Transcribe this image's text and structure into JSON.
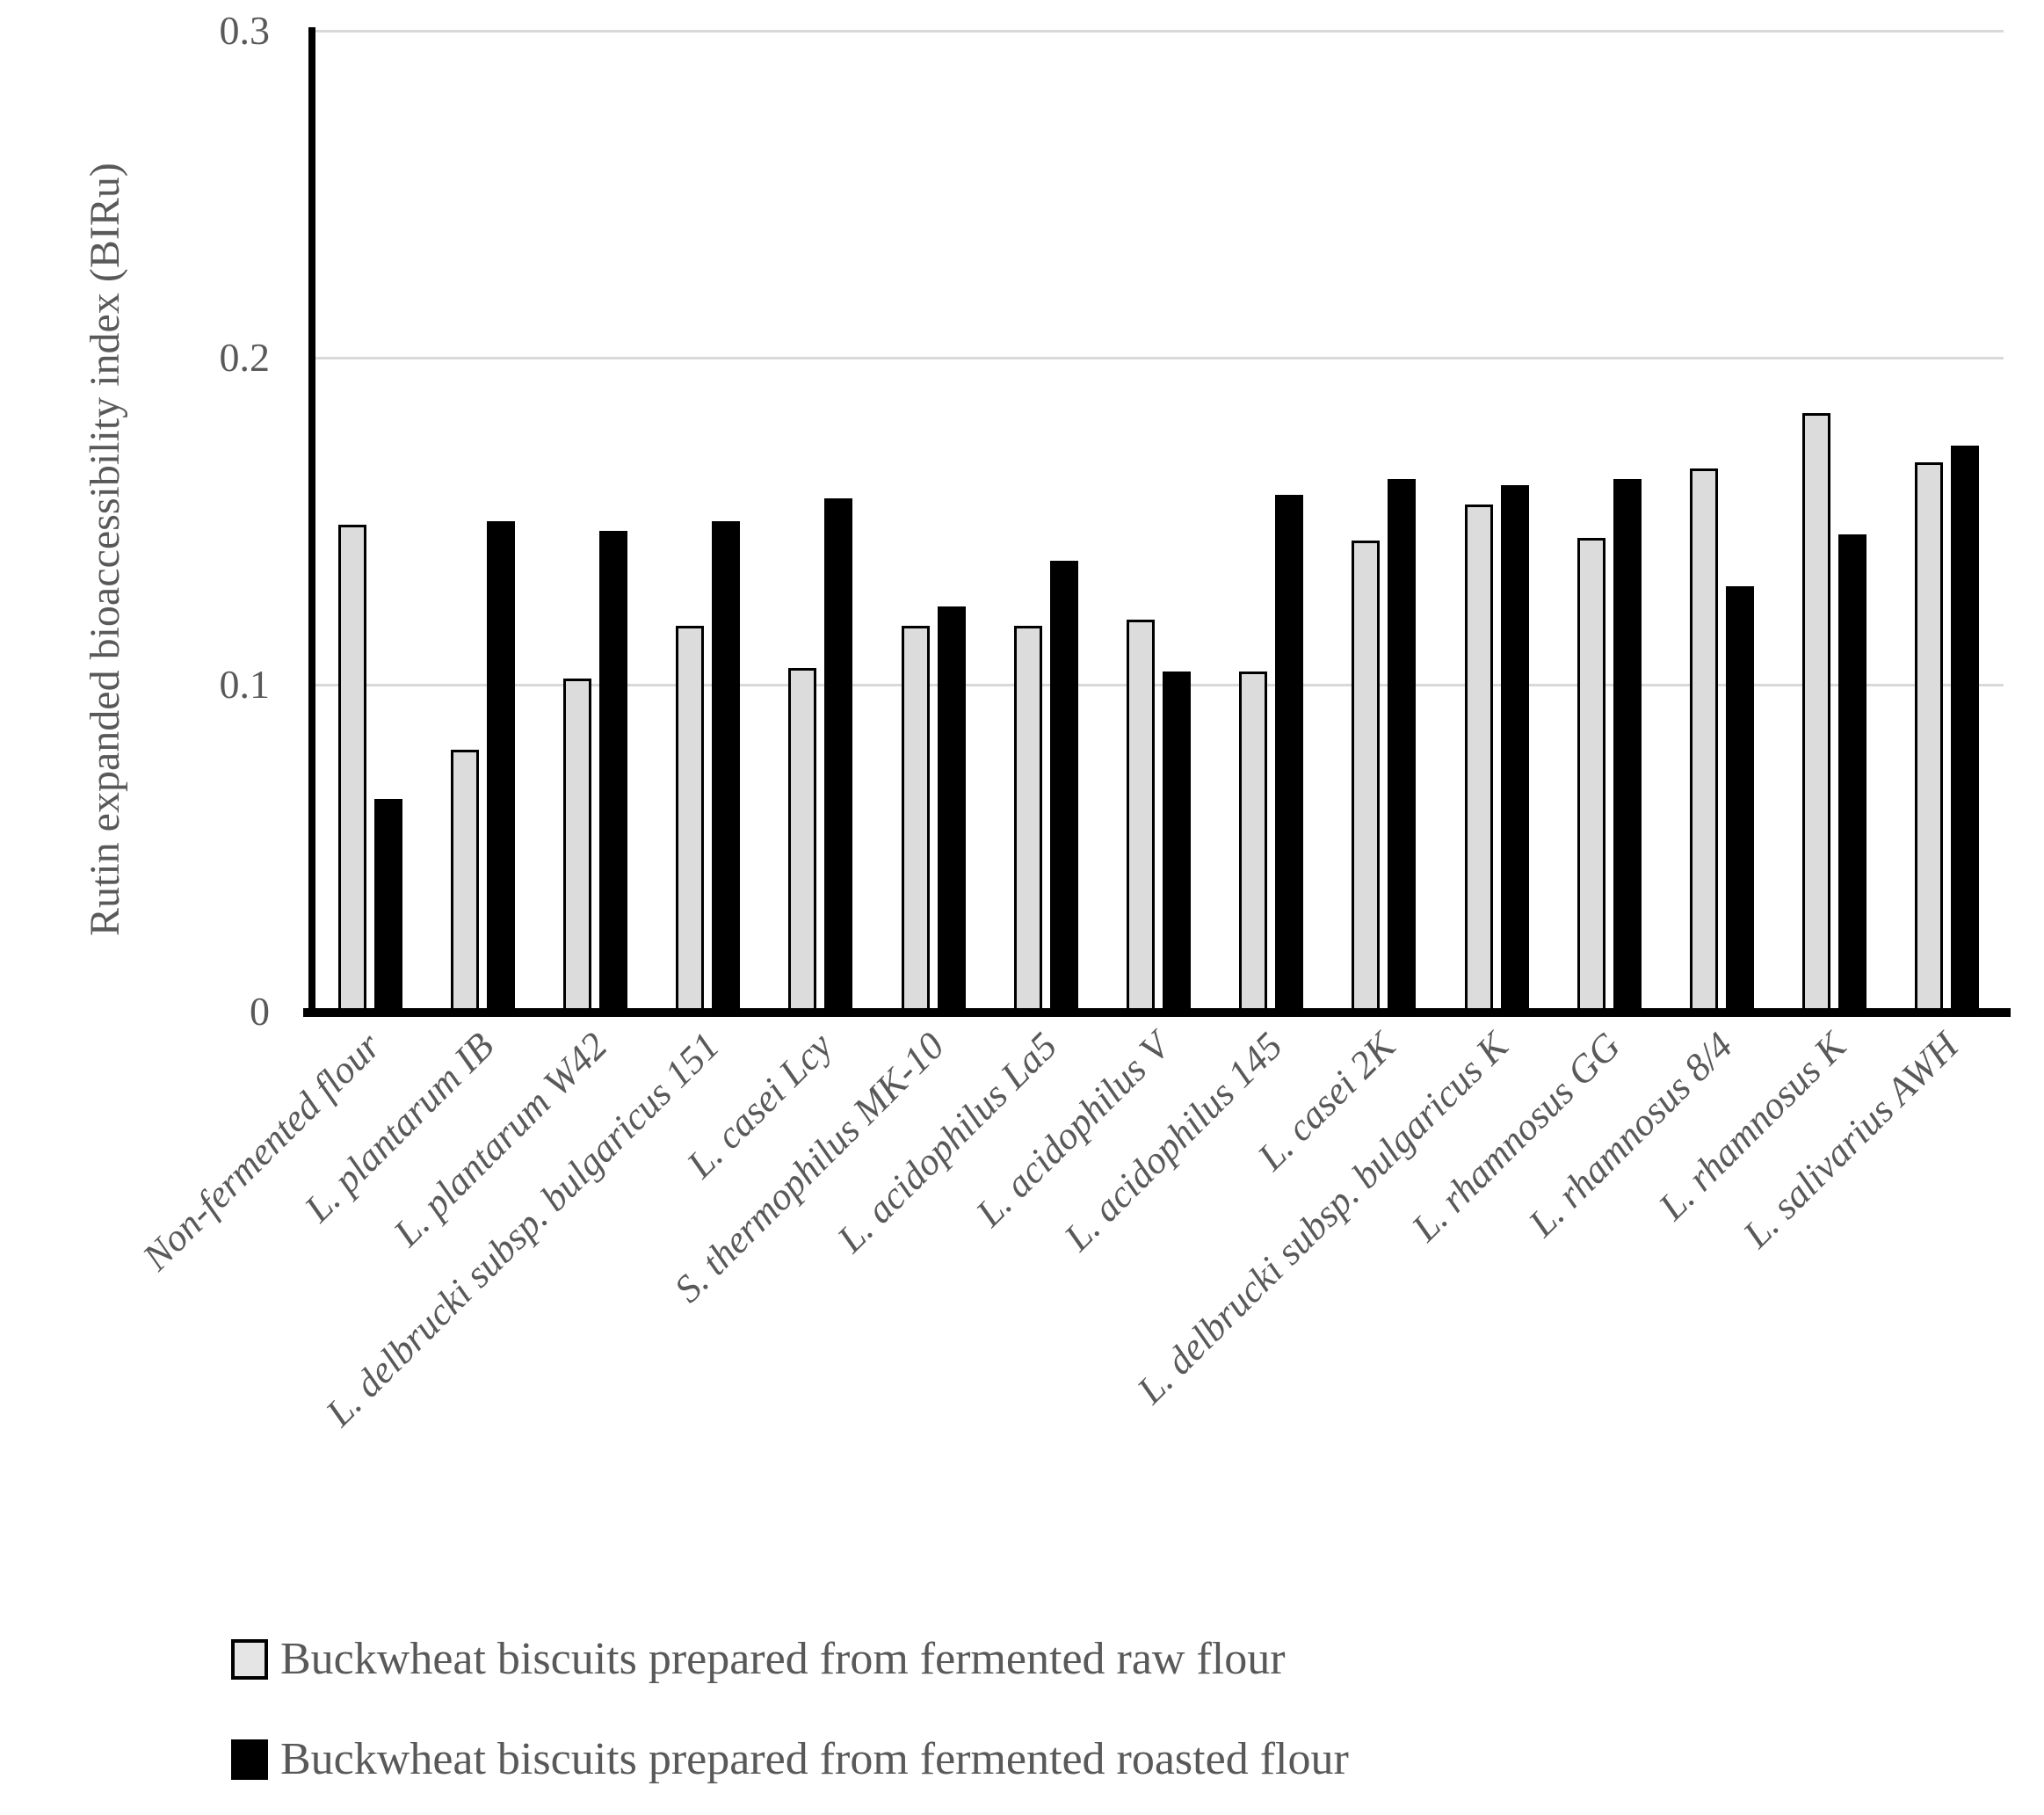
{
  "figure": {
    "background": "#ffffff"
  },
  "y_axis": {
    "title": "Rutin expanded bioaccessibility index (BIRu)",
    "tick_labels": [
      "0",
      "0.1",
      "0.2",
      "0.3"
    ],
    "tick_values": [
      0,
      0.1,
      0.2,
      0.3
    ],
    "max": 0.3
  },
  "colors": {
    "raw_bar_fill": "#dcdcdc",
    "roasted_bar_fill": "#000000",
    "bar_border": "#000000",
    "gridline": "#d9d9d9",
    "axis": "#000000",
    "text": "#595959"
  },
  "chart_data": {
    "type": "bar",
    "title": "",
    "xlabel": "",
    "ylabel": "Rutin expanded bioaccessibility index (BIRu)",
    "ylim": [
      0,
      0.3
    ],
    "yticks": [
      0,
      0.1,
      0.2,
      0.3
    ],
    "grid": true,
    "legend_position": "bottom",
    "categories": [
      "Non-fermented flour",
      "L. plantarum IB",
      "L. plantarum W42",
      "L. delbrucki subsp. bulgaricus 151",
      "L. casei Lcy",
      "S. thermophilus MK-10",
      "L. acidophilus La5",
      "L. acidophilus V",
      "L. acidophilus 145",
      "L. casei 2K",
      "L. delbrucki subsp. bulgaricus K",
      "L. rhamnosus GG",
      "L. rhamnosus 8/4",
      "L. rhamnosus K",
      "L. salivarius AWH"
    ],
    "series": [
      {
        "name": "Buckwheat biscuits prepared from fermented raw flour",
        "color": "#dcdcdc",
        "values": [
          0.149,
          0.08,
          0.102,
          0.118,
          0.105,
          0.118,
          0.118,
          0.12,
          0.104,
          0.144,
          0.155,
          0.145,
          0.166,
          0.183,
          0.168
        ]
      },
      {
        "name": "Buckwheat biscuits prepared from fermented roasted flour",
        "color": "#000000",
        "values": [
          0.065,
          0.15,
          0.147,
          0.15,
          0.157,
          0.124,
          0.138,
          0.104,
          0.158,
          0.163,
          0.161,
          0.163,
          0.13,
          0.146,
          0.173
        ]
      }
    ]
  }
}
